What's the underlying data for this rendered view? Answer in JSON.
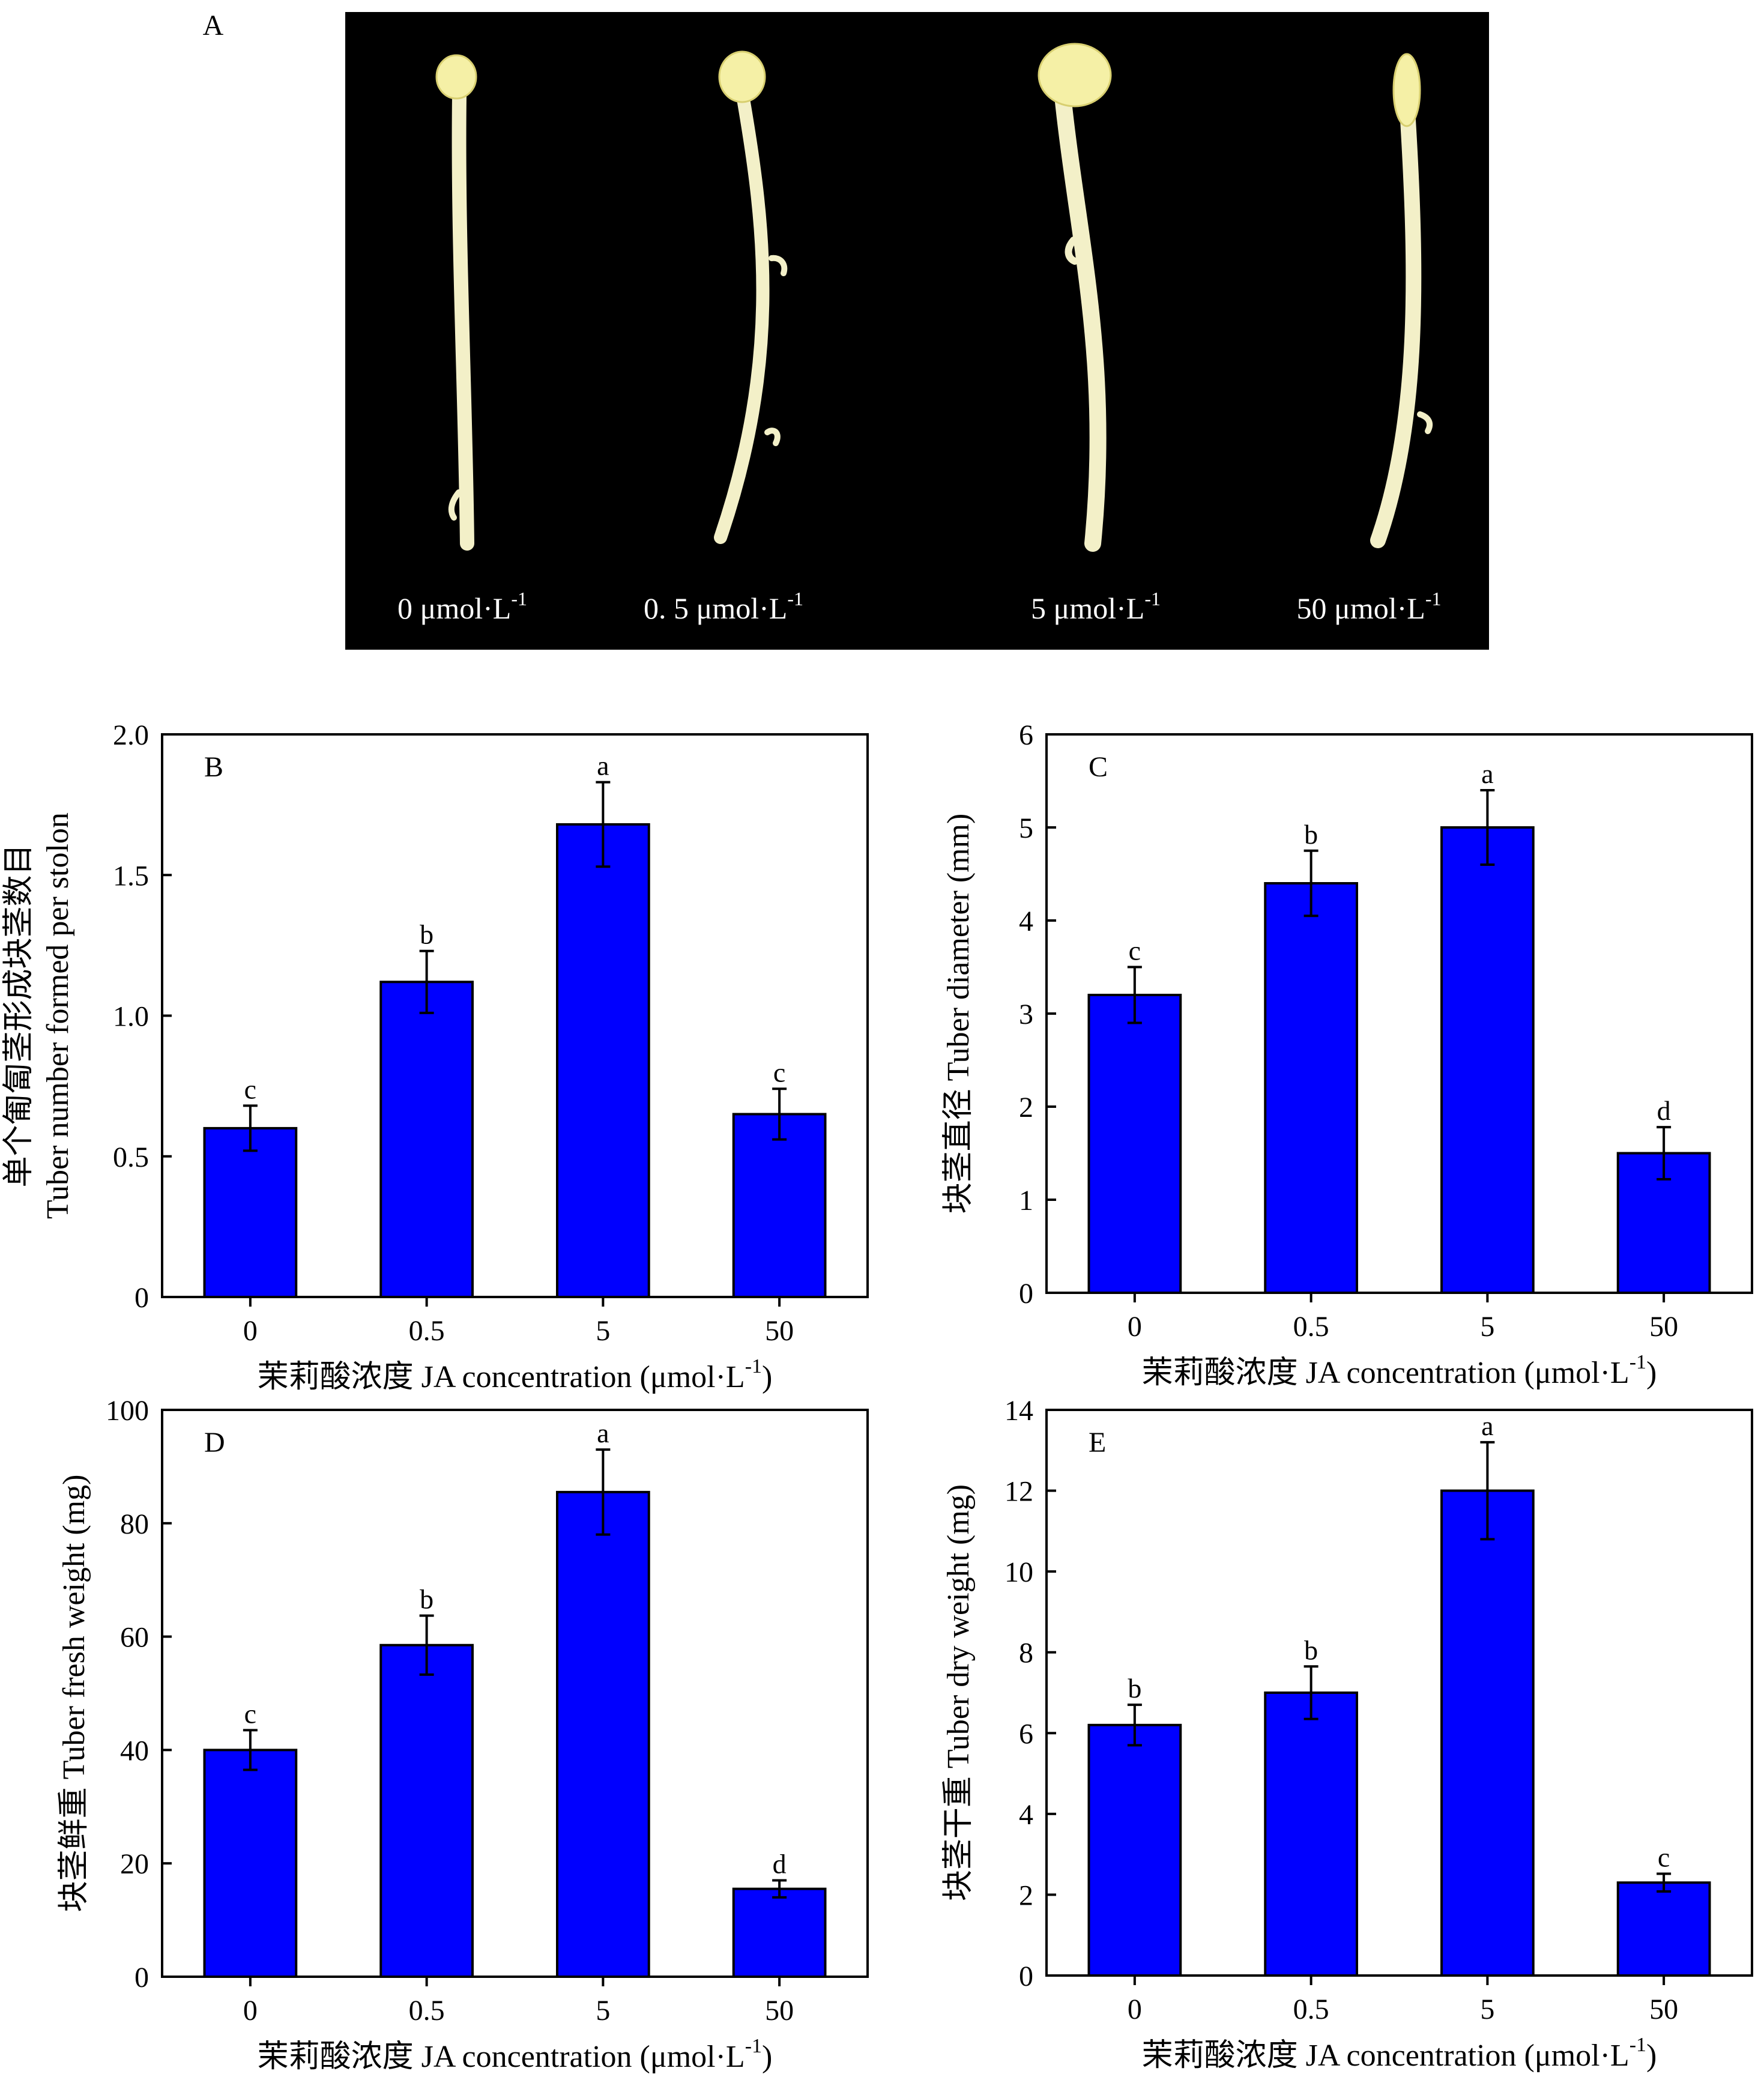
{
  "colors": {
    "bar": "#0000ff",
    "photo_bg": "#000000",
    "stolon": "#f3f0c8",
    "tuber": "#f5f0a6",
    "axis": "#000000"
  },
  "photo": {
    "label": "A",
    "samples": [
      {
        "label": "0 μmol·L",
        "sup": "-1"
      },
      {
        "label": "0. 5 μmol·L",
        "sup": "-1"
      },
      {
        "label": "5 μmol·L",
        "sup": "-1"
      },
      {
        "label": "50 μmol·L",
        "sup": "-1"
      }
    ]
  },
  "chart_data": [
    {
      "type": "bar",
      "panel": "B",
      "categories": [
        "0",
        "0.5",
        "5",
        "50"
      ],
      "values": [
        0.6,
        1.12,
        1.68,
        0.65
      ],
      "errors": [
        0.08,
        0.11,
        0.15,
        0.09
      ],
      "letters": [
        "c",
        "b",
        "a",
        "c"
      ],
      "ylim": [
        0,
        2.0
      ],
      "yticks": [
        0,
        0.5,
        1.0,
        1.5,
        2.0
      ],
      "ytick_labels": [
        "0",
        "0.5",
        "1.0",
        "1.5",
        "2.0"
      ],
      "ylabel_lines": [
        "单个匍匐茎形成块茎数目",
        "Tuber number formed per stolon"
      ],
      "xlabel": "茉莉酸浓度 JA concentration (μmol·L",
      "xlabel_sup": "-1",
      "xlabel_end": ")"
    },
    {
      "type": "bar",
      "panel": "C",
      "categories": [
        "0",
        "0.5",
        "5",
        "50"
      ],
      "values": [
        3.2,
        4.4,
        5.0,
        1.5
      ],
      "errors": [
        0.3,
        0.35,
        0.4,
        0.28
      ],
      "letters": [
        "c",
        "b",
        "a",
        "d"
      ],
      "ylim": [
        0,
        6
      ],
      "yticks": [
        0,
        1,
        2,
        3,
        4,
        5,
        6
      ],
      "ytick_labels": [
        "0",
        "1",
        "2",
        "3",
        "4",
        "5",
        "6"
      ],
      "ylabel_lines": [
        "块茎直径 Tuber diameter (mm)"
      ],
      "xlabel": "茉莉酸浓度 JA concentration (μmol·L",
      "xlabel_sup": "-1",
      "xlabel_end": ")"
    },
    {
      "type": "bar",
      "panel": "D",
      "categories": [
        "0",
        "0.5",
        "5",
        "50"
      ],
      "values": [
        40,
        58.5,
        85.5,
        15.5
      ],
      "errors": [
        3.5,
        5.2,
        7.5,
        1.5
      ],
      "letters": [
        "c",
        "b",
        "a",
        "d"
      ],
      "ylim": [
        0,
        100
      ],
      "yticks": [
        0,
        20,
        40,
        60,
        80,
        100
      ],
      "ytick_labels": [
        "0",
        "20",
        "40",
        "60",
        "80",
        "100"
      ],
      "ylabel_lines": [
        "块茎鲜重 Tuber fresh weight (mg)"
      ],
      "xlabel": "茉莉酸浓度 JA concentration (μmol·L",
      "xlabel_sup": "-1",
      "xlabel_end": ")"
    },
    {
      "type": "bar",
      "panel": "E",
      "categories": [
        "0",
        "0.5",
        "5",
        "50"
      ],
      "values": [
        6.2,
        7.0,
        12.0,
        2.3
      ],
      "errors": [
        0.5,
        0.65,
        1.2,
        0.22
      ],
      "letters": [
        "b",
        "b",
        "a",
        "c"
      ],
      "ylim": [
        0,
        14
      ],
      "yticks": [
        0,
        2,
        4,
        6,
        8,
        10,
        12,
        14
      ],
      "ytick_labels": [
        "0",
        "2",
        "4",
        "6",
        "8",
        "10",
        "12",
        "14"
      ],
      "ylabel_lines": [
        "块茎干重 Tuber dry weight (mg)"
      ],
      "xlabel": "茉莉酸浓度 JA concentration (μmol·L",
      "xlabel_sup": "-1",
      "xlabel_end": ")"
    }
  ]
}
